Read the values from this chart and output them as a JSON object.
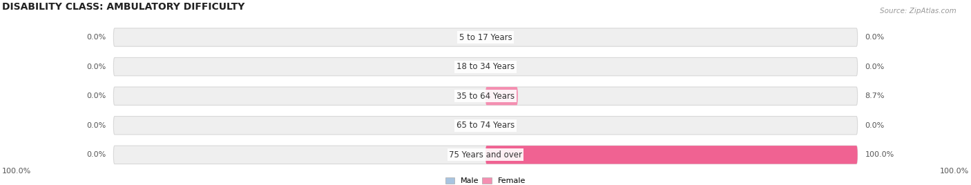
{
  "title": "DISABILITY CLASS: AMBULATORY DIFFICULTY",
  "source": "Source: ZipAtlas.com",
  "categories": [
    "5 to 17 Years",
    "18 to 34 Years",
    "35 to 64 Years",
    "65 to 74 Years",
    "75 Years and over"
  ],
  "male_values": [
    0.0,
    0.0,
    0.0,
    0.0,
    0.0
  ],
  "female_values": [
    0.0,
    0.0,
    8.7,
    0.0,
    100.0
  ],
  "male_color": "#a8c4e0",
  "female_color_partial": "#f48fb1",
  "female_color_full": "#f06292",
  "bar_bg_color": "#efefef",
  "bar_edge_color": "#d8d8d8",
  "title_fontsize": 10,
  "label_fontsize": 8,
  "category_fontsize": 8.5,
  "figsize": [
    14.06,
    2.68
  ],
  "dpi": 100,
  "max_value": 100.0,
  "left_bottom_label": "100.0%",
  "right_bottom_label": "100.0%",
  "legend_male": "Male",
  "legend_female": "Female"
}
